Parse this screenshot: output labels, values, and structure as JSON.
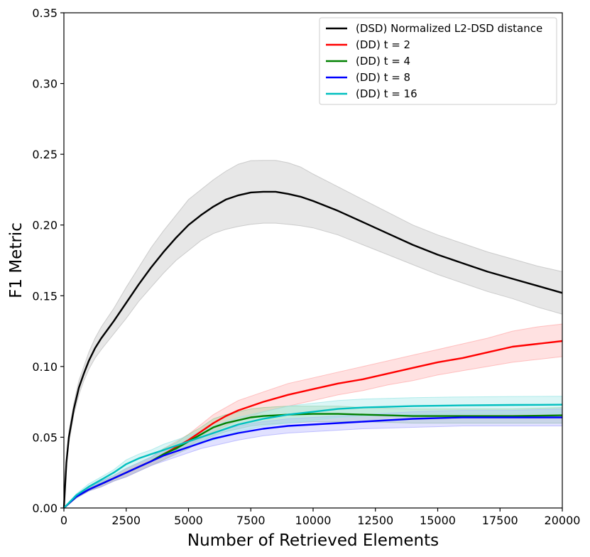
{
  "chart_data": {
    "type": "line",
    "title": "",
    "xlabel": "Number of Retrieved Elements",
    "ylabel": "F1 Metric",
    "xlim": [
      0,
      20000
    ],
    "ylim": [
      0,
      0.35
    ],
    "grid": false,
    "legend_position": "top-right",
    "x_ticks": [
      0,
      2500,
      5000,
      7500,
      10000,
      12500,
      15000,
      17500,
      20000
    ],
    "x_tick_labels": [
      "0",
      "2500",
      "5000",
      "7500",
      "10000",
      "12500",
      "15000",
      "17500",
      "20000"
    ],
    "y_ticks": [
      0,
      0.05,
      0.1,
      0.15,
      0.2,
      0.25,
      0.3,
      0.35
    ],
    "y_tick_labels": [
      "0.00",
      "0.05",
      "0.10",
      "0.15",
      "0.20",
      "0.25",
      "0.30",
      "0.35"
    ],
    "series": [
      {
        "name": "(DSD) Normalized L2-DSD distance",
        "color": "#000000",
        "band_color": "#bbbbbb",
        "x": [
          0,
          100,
          200,
          400,
          600,
          800,
          1000,
          1250,
          1500,
          2000,
          2500,
          3000,
          3500,
          4000,
          4500,
          5000,
          5500,
          6000,
          6500,
          7000,
          7500,
          8000,
          8500,
          9000,
          9500,
          10000,
          11000,
          12000,
          13000,
          14000,
          15000,
          16000,
          17000,
          18000,
          19000,
          20000
        ],
        "y": [
          0,
          0.032,
          0.05,
          0.07,
          0.085,
          0.095,
          0.104,
          0.113,
          0.12,
          0.132,
          0.145,
          0.158,
          0.17,
          0.181,
          0.191,
          0.2,
          0.207,
          0.213,
          0.218,
          0.221,
          0.223,
          0.2235,
          0.2235,
          0.222,
          0.22,
          0.217,
          0.21,
          0.202,
          0.194,
          0.186,
          0.179,
          0.173,
          0.167,
          0.162,
          0.157,
          0.152
        ],
        "lower": [
          0,
          0.029,
          0.046,
          0.066,
          0.08,
          0.09,
          0.098,
          0.106,
          0.112,
          0.123,
          0.134,
          0.146,
          0.156,
          0.166,
          0.175,
          0.182,
          0.189,
          0.194,
          0.197,
          0.199,
          0.2005,
          0.2013,
          0.2013,
          0.2005,
          0.1995,
          0.198,
          0.193,
          0.186,
          0.179,
          0.172,
          0.165,
          0.159,
          0.153,
          0.148,
          0.142,
          0.137
        ],
        "upper": [
          0,
          0.035,
          0.054,
          0.074,
          0.09,
          0.1,
          0.11,
          0.12,
          0.128,
          0.141,
          0.156,
          0.17,
          0.184,
          0.196,
          0.207,
          0.218,
          0.225,
          0.232,
          0.238,
          0.243,
          0.2455,
          0.2457,
          0.2457,
          0.244,
          0.241,
          0.236,
          0.227,
          0.218,
          0.209,
          0.2,
          0.193,
          0.187,
          0.181,
          0.176,
          0.171,
          0.167
        ]
      },
      {
        "name": "(DD) t = 2",
        "color": "#ff0000",
        "band_color": "#ffaaaa",
        "x": [
          0,
          500,
          1000,
          1500,
          2000,
          2500,
          3000,
          3500,
          4000,
          4500,
          5000,
          5500,
          6000,
          6500,
          7000,
          7500,
          8000,
          9000,
          10000,
          11000,
          12000,
          13000,
          14000,
          15000,
          16000,
          17000,
          18000,
          19000,
          20000
        ],
        "y": [
          0,
          0.008,
          0.013,
          0.017,
          0.021,
          0.025,
          0.029,
          0.033,
          0.038,
          0.043,
          0.048,
          0.054,
          0.06,
          0.065,
          0.069,
          0.072,
          0.075,
          0.08,
          0.084,
          0.088,
          0.091,
          0.095,
          0.099,
          0.103,
          0.106,
          0.11,
          0.114,
          0.116,
          0.118
        ],
        "lower": [
          0,
          0.007,
          0.012,
          0.015,
          0.019,
          0.022,
          0.026,
          0.03,
          0.034,
          0.039,
          0.044,
          0.049,
          0.054,
          0.058,
          0.062,
          0.065,
          0.068,
          0.072,
          0.076,
          0.08,
          0.083,
          0.087,
          0.09,
          0.094,
          0.097,
          0.1,
          0.103,
          0.105,
          0.107
        ],
        "upper": [
          0,
          0.009,
          0.014,
          0.019,
          0.023,
          0.028,
          0.032,
          0.036,
          0.042,
          0.047,
          0.052,
          0.059,
          0.066,
          0.071,
          0.076,
          0.079,
          0.082,
          0.088,
          0.092,
          0.096,
          0.1,
          0.104,
          0.108,
          0.112,
          0.116,
          0.12,
          0.125,
          0.128,
          0.13
        ]
      },
      {
        "name": "(DD) t = 4",
        "color": "#008000",
        "band_color": "#99cc99",
        "x": [
          0,
          500,
          1000,
          1500,
          2000,
          2500,
          3000,
          3500,
          4000,
          4500,
          5000,
          5500,
          6000,
          6500,
          7000,
          7500,
          8000,
          9000,
          10000,
          11000,
          12000,
          14000,
          16000,
          18000,
          20000
        ],
        "y": [
          0,
          0.008,
          0.013,
          0.017,
          0.021,
          0.025,
          0.029,
          0.033,
          0.038,
          0.042,
          0.047,
          0.052,
          0.057,
          0.06,
          0.062,
          0.064,
          0.065,
          0.066,
          0.0665,
          0.0665,
          0.066,
          0.065,
          0.065,
          0.065,
          0.0655
        ],
        "lower": [
          0,
          0.007,
          0.012,
          0.015,
          0.019,
          0.022,
          0.026,
          0.03,
          0.034,
          0.038,
          0.042,
          0.047,
          0.051,
          0.054,
          0.056,
          0.058,
          0.059,
          0.06,
          0.061,
          0.061,
          0.061,
          0.06,
          0.06,
          0.06,
          0.06
        ],
        "upper": [
          0,
          0.009,
          0.014,
          0.019,
          0.023,
          0.028,
          0.032,
          0.036,
          0.042,
          0.046,
          0.052,
          0.057,
          0.063,
          0.066,
          0.068,
          0.07,
          0.071,
          0.072,
          0.072,
          0.072,
          0.071,
          0.07,
          0.07,
          0.07,
          0.071
        ]
      },
      {
        "name": "(DD) t = 8",
        "color": "#0000ff",
        "band_color": "#aaaaff",
        "x": [
          0,
          500,
          1000,
          1500,
          2000,
          2500,
          3000,
          3500,
          4000,
          4500,
          5000,
          5500,
          6000,
          6500,
          7000,
          8000,
          9000,
          10000,
          11000,
          12000,
          14000,
          16000,
          18000,
          20000
        ],
        "y": [
          0,
          0.008,
          0.013,
          0.017,
          0.021,
          0.025,
          0.029,
          0.033,
          0.037,
          0.04,
          0.043,
          0.046,
          0.049,
          0.051,
          0.053,
          0.056,
          0.058,
          0.059,
          0.06,
          0.061,
          0.063,
          0.064,
          0.064,
          0.064
        ],
        "lower": [
          0,
          0.007,
          0.012,
          0.015,
          0.019,
          0.022,
          0.026,
          0.03,
          0.033,
          0.036,
          0.039,
          0.042,
          0.044,
          0.046,
          0.048,
          0.051,
          0.053,
          0.054,
          0.055,
          0.056,
          0.057,
          0.058,
          0.058,
          0.058
        ],
        "upper": [
          0,
          0.009,
          0.014,
          0.019,
          0.023,
          0.028,
          0.032,
          0.036,
          0.041,
          0.044,
          0.047,
          0.05,
          0.053,
          0.056,
          0.058,
          0.061,
          0.063,
          0.064,
          0.065,
          0.066,
          0.068,
          0.069,
          0.069,
          0.07
        ]
      },
      {
        "name": "(DD) t = 16",
        "color": "#00bfbf",
        "band_color": "#99e6e6",
        "x": [
          0,
          500,
          1000,
          1500,
          2000,
          2500,
          3000,
          3500,
          4000,
          4500,
          5000,
          5500,
          6000,
          6500,
          7000,
          7500,
          8000,
          9000,
          10000,
          11000,
          12000,
          14000,
          16000,
          18000,
          20000
        ],
        "y": [
          0,
          0.009,
          0.015,
          0.02,
          0.025,
          0.031,
          0.035,
          0.038,
          0.041,
          0.044,
          0.047,
          0.05,
          0.053,
          0.056,
          0.059,
          0.061,
          0.063,
          0.066,
          0.068,
          0.07,
          0.071,
          0.072,
          0.0725,
          0.0728,
          0.073
        ],
        "lower": [
          0,
          0.008,
          0.013,
          0.018,
          0.023,
          0.028,
          0.032,
          0.035,
          0.037,
          0.04,
          0.043,
          0.046,
          0.048,
          0.051,
          0.054,
          0.056,
          0.058,
          0.06,
          0.062,
          0.064,
          0.065,
          0.066,
          0.0665,
          0.0668,
          0.067
        ],
        "upper": [
          0,
          0.01,
          0.017,
          0.022,
          0.027,
          0.034,
          0.038,
          0.041,
          0.045,
          0.048,
          0.051,
          0.054,
          0.058,
          0.061,
          0.064,
          0.066,
          0.068,
          0.072,
          0.074,
          0.076,
          0.077,
          0.078,
          0.0785,
          0.0788,
          0.079
        ]
      }
    ]
  }
}
